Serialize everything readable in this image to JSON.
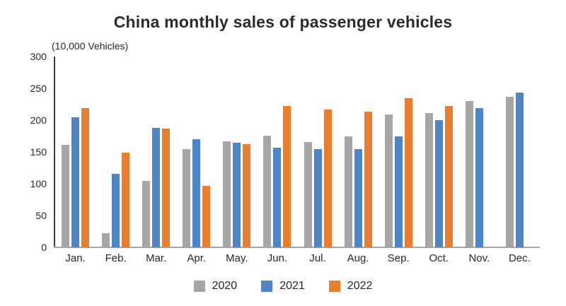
{
  "chart_data": {
    "type": "bar",
    "title": "China monthly sales of passenger vehicles",
    "ylabel": "(10,000 Vehicles)",
    "xlabel": "",
    "categories": [
      "Jan.",
      "Feb.",
      "Mar.",
      "Apr.",
      "May.",
      "Jun.",
      "Jul.",
      "Aug.",
      "Sep.",
      "Oct.",
      "Nov.",
      "Dec."
    ],
    "series": [
      {
        "name": "2020",
        "color": "#a6a6a6",
        "values": [
          161,
          22,
          105,
          154,
          167,
          176,
          166,
          175,
          209,
          211,
          230,
          237
        ]
      },
      {
        "name": "2021",
        "color": "#4e86c5",
        "values": [
          205,
          116,
          188,
          170,
          165,
          157,
          155,
          155,
          175,
          200,
          219,
          243
        ]
      },
      {
        "name": "2022",
        "color": "#ea7e30",
        "values": [
          219,
          149,
          187,
          97,
          162,
          222,
          217,
          213,
          234,
          222,
          null,
          null
        ]
      }
    ],
    "ylim": [
      0,
      300
    ],
    "ytick_step": 50,
    "grid": false,
    "legend_position": "bottom"
  },
  "colors": {
    "y_axis_line": "#3f3f3f",
    "x_axis_line": "#a6a6a6",
    "text": "#262626"
  }
}
